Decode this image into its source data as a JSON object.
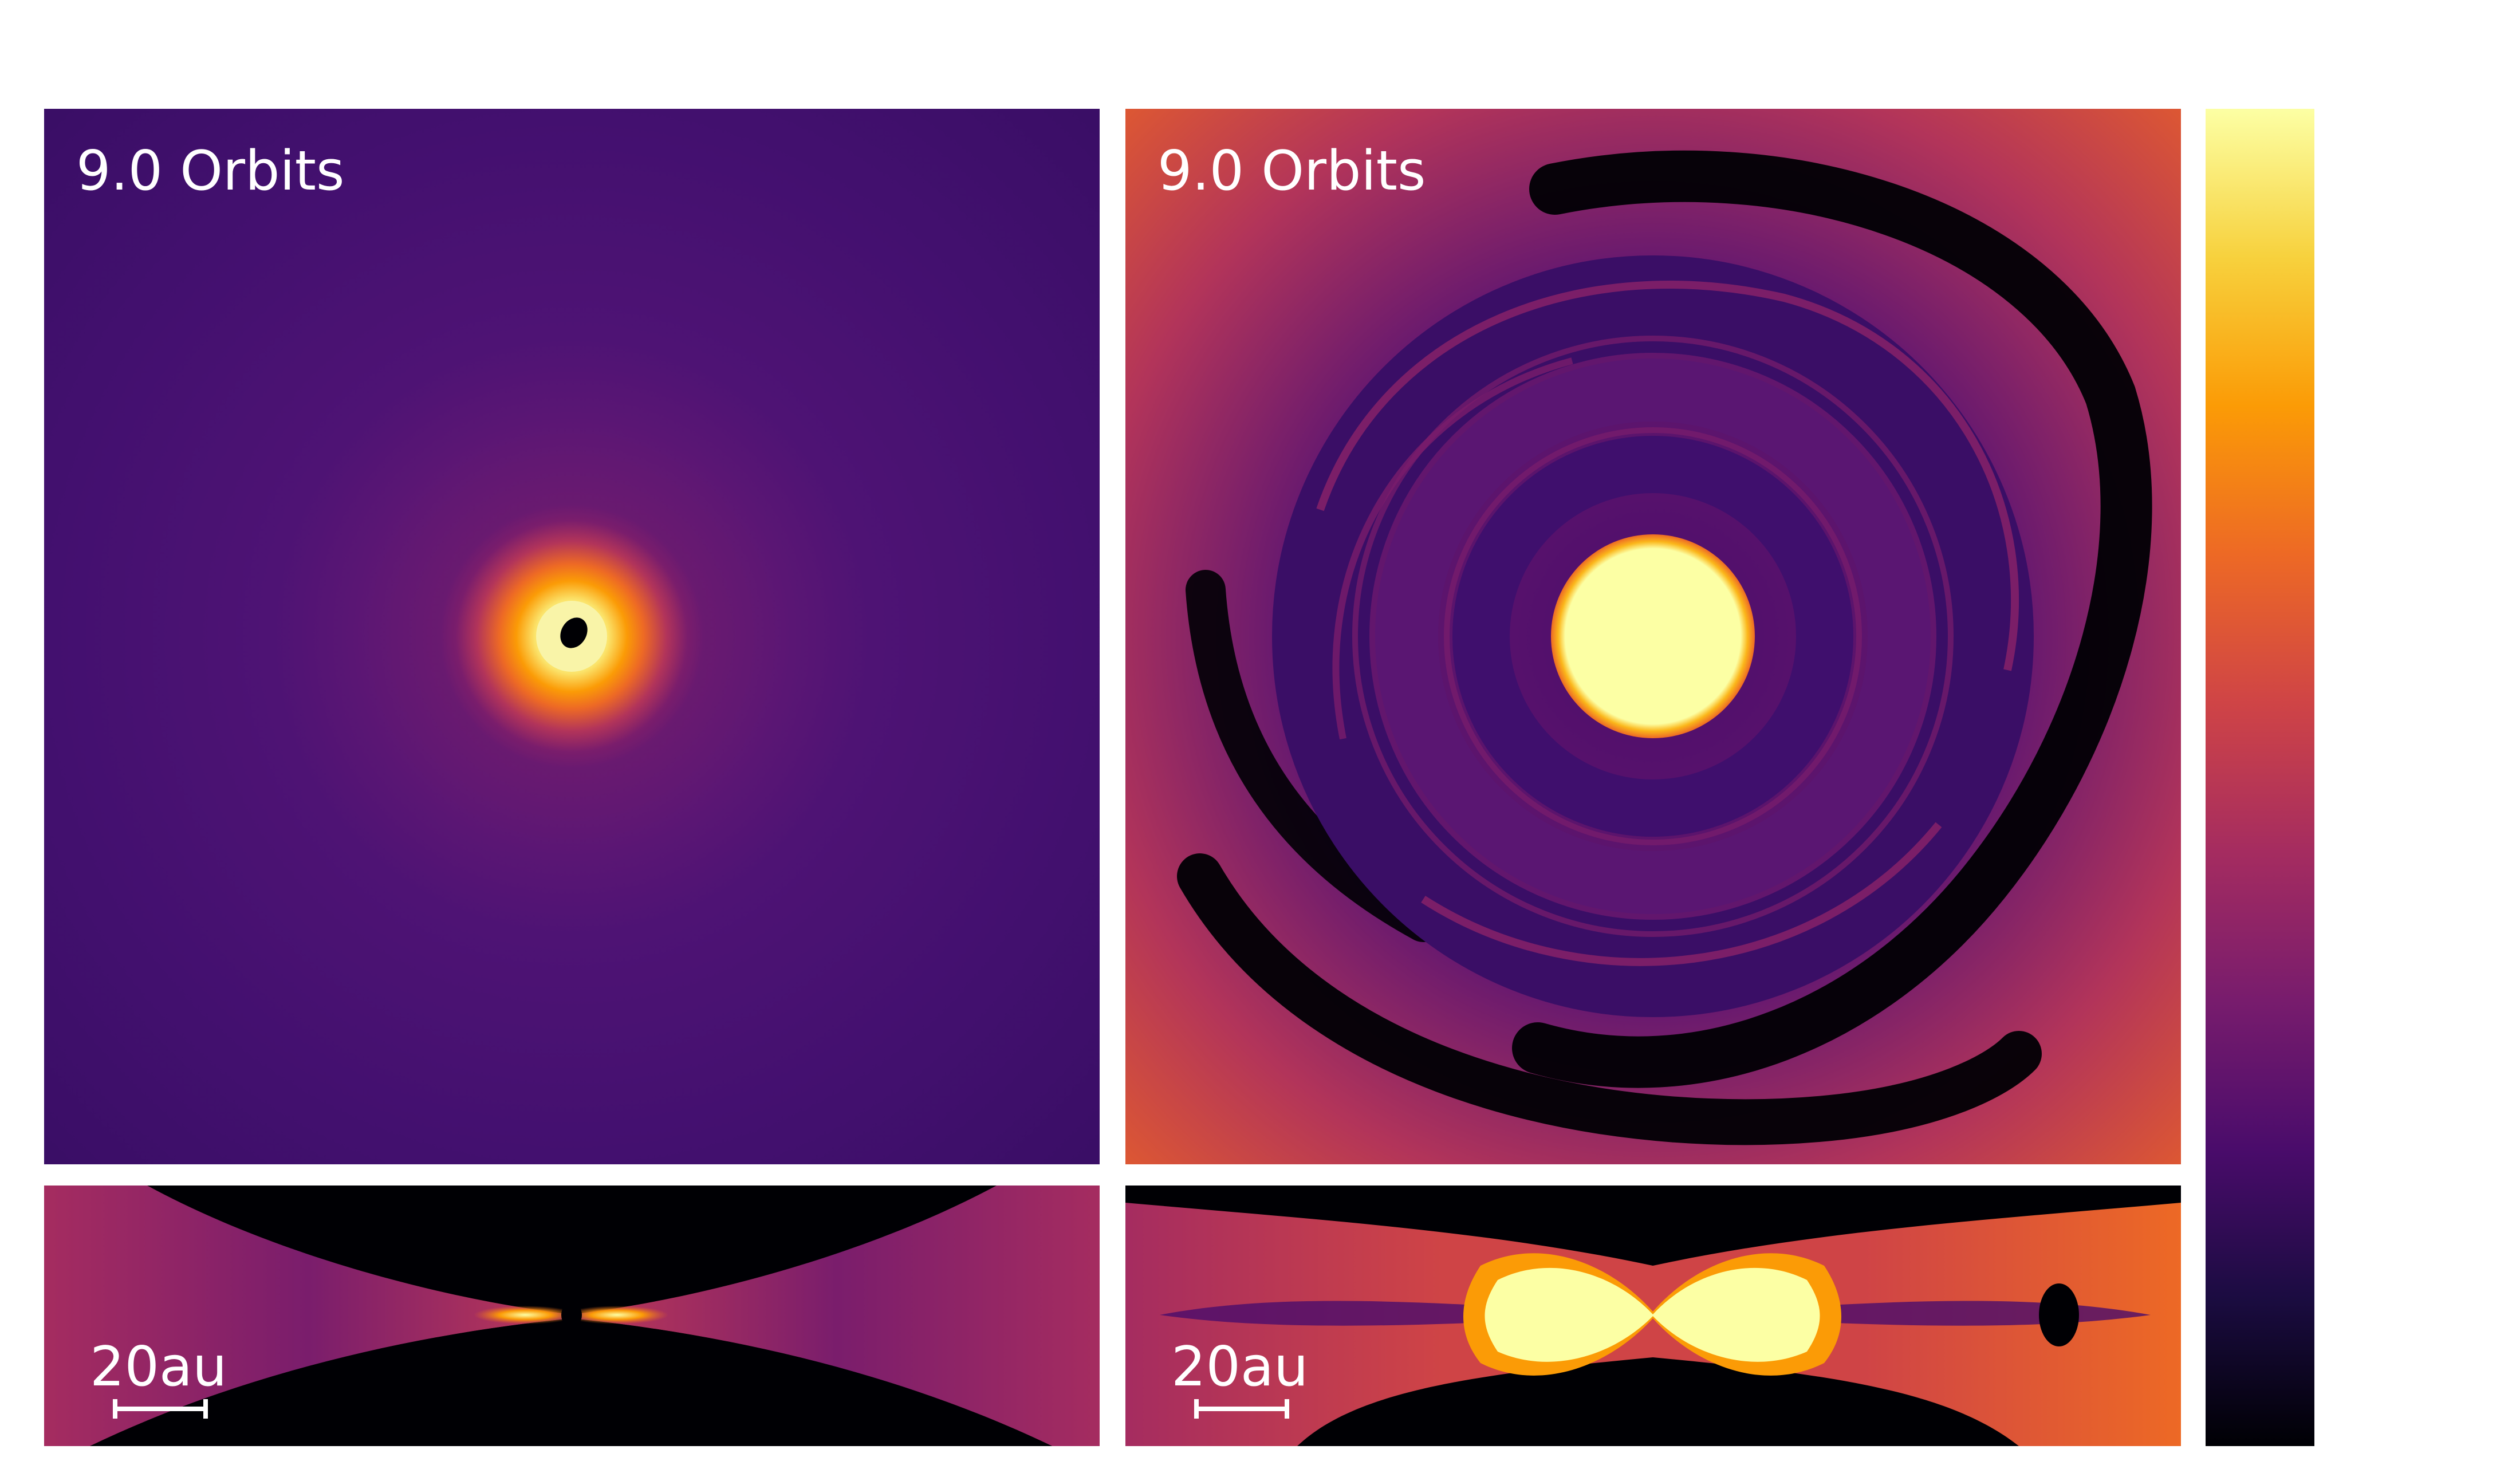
{
  "panels": [
    {
      "time_label": "9.0 Orbits"
    },
    {
      "time_label": "9.0 Orbits"
    }
  ],
  "edge_panels": [
    {
      "scale_label": "20au"
    },
    {
      "scale_label": "20au"
    }
  ],
  "colormap": {
    "name": "inferno",
    "stops": [
      "#000004",
      "#1b0c41",
      "#4a0c6b",
      "#781c6d",
      "#a52c60",
      "#cf4446",
      "#ed6925",
      "#fb9b06",
      "#f7d13d",
      "#fcffa4"
    ]
  }
}
